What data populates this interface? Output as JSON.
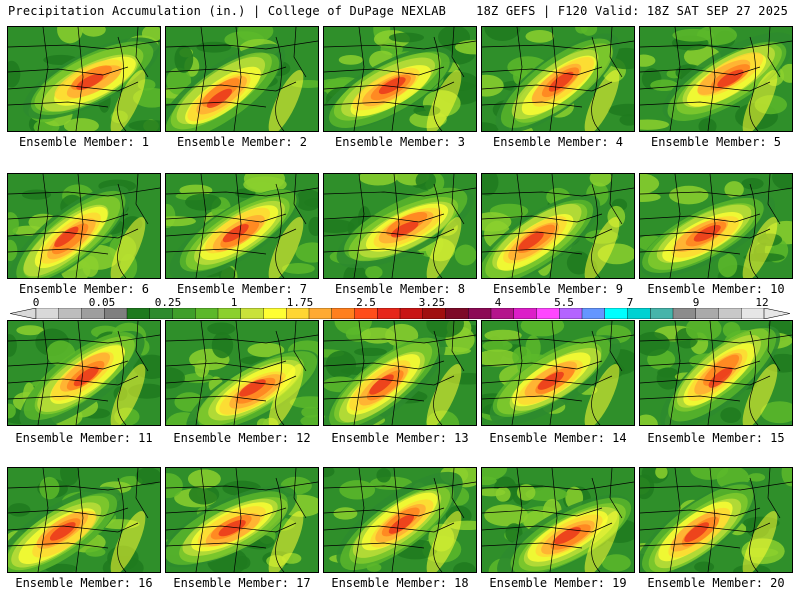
{
  "header": {
    "left": "Precipitation Accumulation (in.) | College of DuPage NEXLAB",
    "right": "18Z GEFS | F120 Valid: 18Z SAT SEP 27 2025"
  },
  "colors": {
    "background": "#ffffff",
    "scale": [
      "#d9d9d9",
      "#bdbdbd",
      "#9e9e9e",
      "#7f7f7f",
      "#1e7a1e",
      "#2e8b2e",
      "#3f9f2a",
      "#5cb82a",
      "#8bd02e",
      "#c9e23a",
      "#ffff33",
      "#ffd633",
      "#ffaa33",
      "#ff7f1e",
      "#ff4d1a",
      "#e6261a",
      "#c81414",
      "#a00f0f",
      "#7d0a28",
      "#8c0a55",
      "#b4148c",
      "#dc1ec8",
      "#ff46ff",
      "#b464ff",
      "#6496ff",
      "#00ffff",
      "#00d2d2",
      "#46b4aa",
      "#8c8c8c",
      "#aaaaaa",
      "#c8c8c8",
      "#e6e6e6"
    ]
  },
  "colorbar": {
    "ticks": [
      "0",
      "0.05",
      "0.25",
      "1",
      "1.75",
      "2.5",
      "3.25",
      "4",
      "5.5",
      "7",
      "9",
      "12"
    ]
  },
  "members": [
    {
      "label": "Ensemble Member: 1"
    },
    {
      "label": "Ensemble Member: 2"
    },
    {
      "label": "Ensemble Member: 3"
    },
    {
      "label": "Ensemble Member: 4"
    },
    {
      "label": "Ensemble Member: 5"
    },
    {
      "label": "Ensemble Member: 6"
    },
    {
      "label": "Ensemble Member: 7"
    },
    {
      "label": "Ensemble Member: 8"
    },
    {
      "label": "Ensemble Member: 9"
    },
    {
      "label": "Ensemble Member: 10"
    },
    {
      "label": "Ensemble Member: 11"
    },
    {
      "label": "Ensemble Member: 12"
    },
    {
      "label": "Ensemble Member: 13"
    },
    {
      "label": "Ensemble Member: 14"
    },
    {
      "label": "Ensemble Member: 15"
    },
    {
      "label": "Ensemble Member: 16"
    },
    {
      "label": "Ensemble Member: 17"
    },
    {
      "label": "Ensemble Member: 18"
    },
    {
      "label": "Ensemble Member: 19"
    },
    {
      "label": "Ensemble Member: 20"
    }
  ]
}
